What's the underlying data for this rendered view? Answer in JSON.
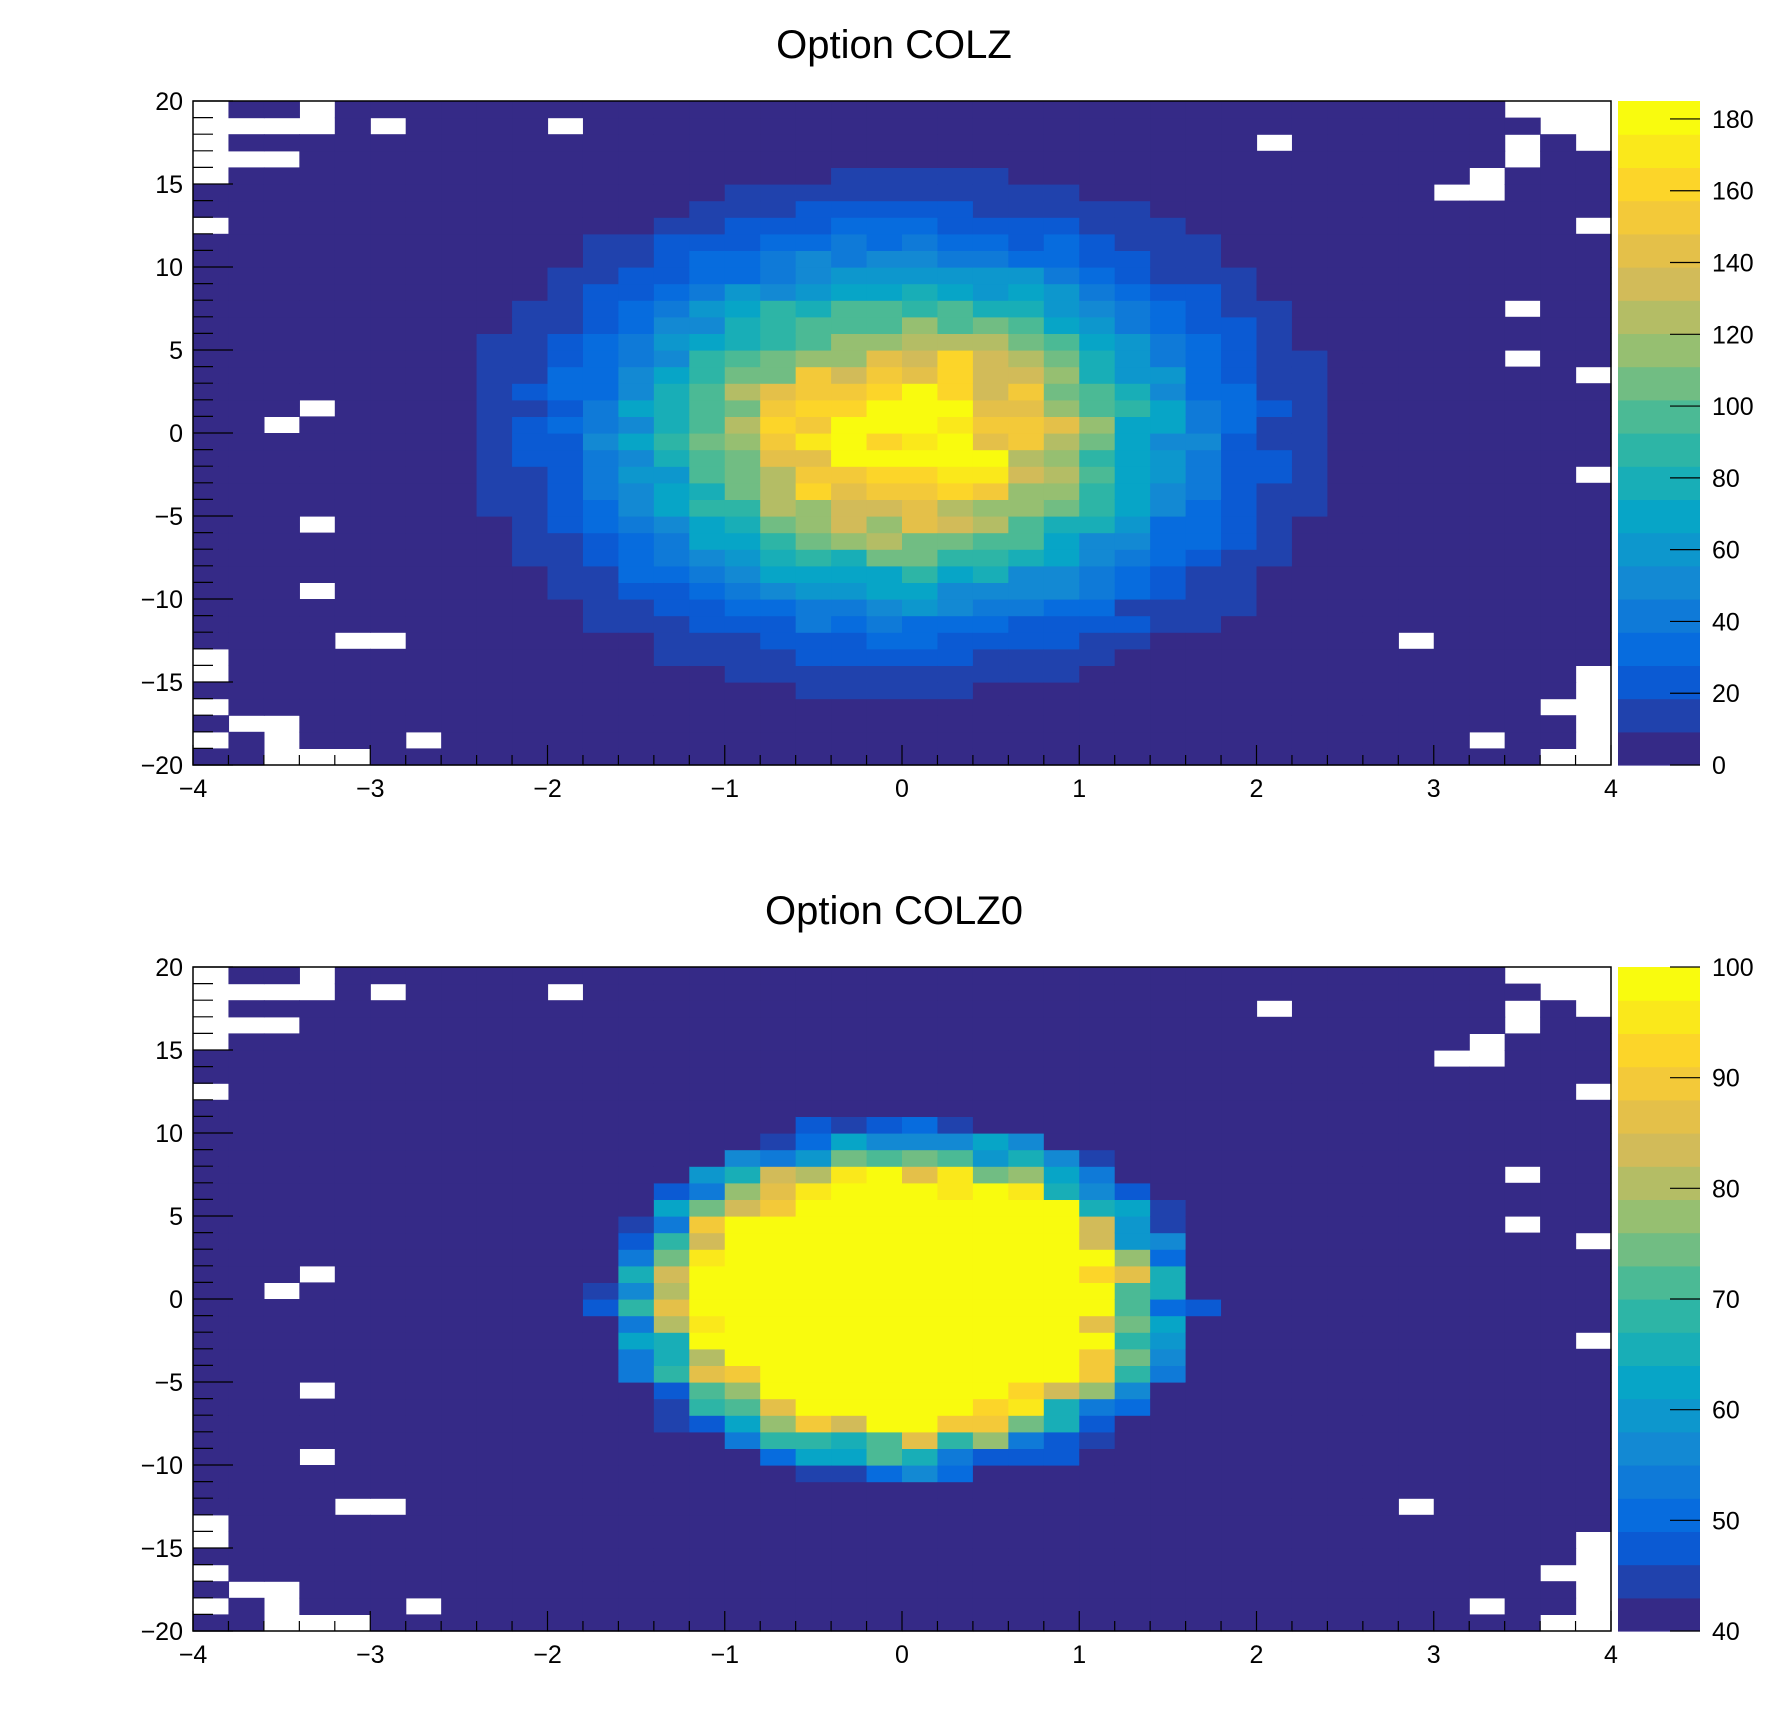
{
  "chart_data": [
    {
      "type": "heatmap",
      "title": "Option COLZ",
      "xlim": [
        -4,
        4
      ],
      "ylim": [
        -20,
        20
      ],
      "x_ticks": [
        "−4",
        "−3",
        "−2",
        "−1",
        "0",
        "1",
        "2",
        "3",
        "4"
      ],
      "y_ticks": [
        "20",
        "15",
        "10",
        "5",
        "0",
        "−5",
        "−10",
        "−15",
        "−20"
      ],
      "colorbar": {
        "range": [
          0,
          185
        ],
        "ticks": [
          "0",
          "20",
          "40",
          "60",
          "80",
          "100",
          "120",
          "140",
          "160",
          "180"
        ]
      },
      "bins": {
        "x": 40,
        "y": 40
      },
      "distribution": {
        "x_mean": 0,
        "x_sigma": 1,
        "y_mean": 0,
        "y_sigma": 6.5,
        "peak_count": 185
      },
      "options": {
        "draw_empty_bins": false,
        "palette": "kBird"
      }
    },
    {
      "type": "heatmap",
      "title": "Option COLZ0",
      "xlim": [
        -4,
        4
      ],
      "ylim": [
        -20,
        20
      ],
      "x_ticks": [
        "−4",
        "−3",
        "−2",
        "−1",
        "0",
        "1",
        "2",
        "3",
        "4"
      ],
      "y_ticks": [
        "20",
        "15",
        "10",
        "5",
        "0",
        "−5",
        "−10",
        "−15",
        "−20"
      ],
      "colorbar": {
        "range": [
          40,
          100
        ],
        "ticks": [
          "40",
          "50",
          "60",
          "70",
          "80",
          "90",
          "100"
        ]
      },
      "bins": {
        "x": 40,
        "y": 40
      },
      "distribution": {
        "x_mean": 0,
        "x_sigma": 1,
        "y_mean": 0,
        "y_sigma": 6.5,
        "peak_count": 185
      },
      "options": {
        "draw_empty_bins": false,
        "palette": "kBird",
        "below_min_color": "#352a87"
      }
    }
  ],
  "palette": [
    "#352a87",
    "#0363e1",
    "#1485d4",
    "#06a7c6",
    "#38b99e",
    "#92bf73",
    "#d9ba56",
    "#fcce2e",
    "#f9fb0e"
  ]
}
